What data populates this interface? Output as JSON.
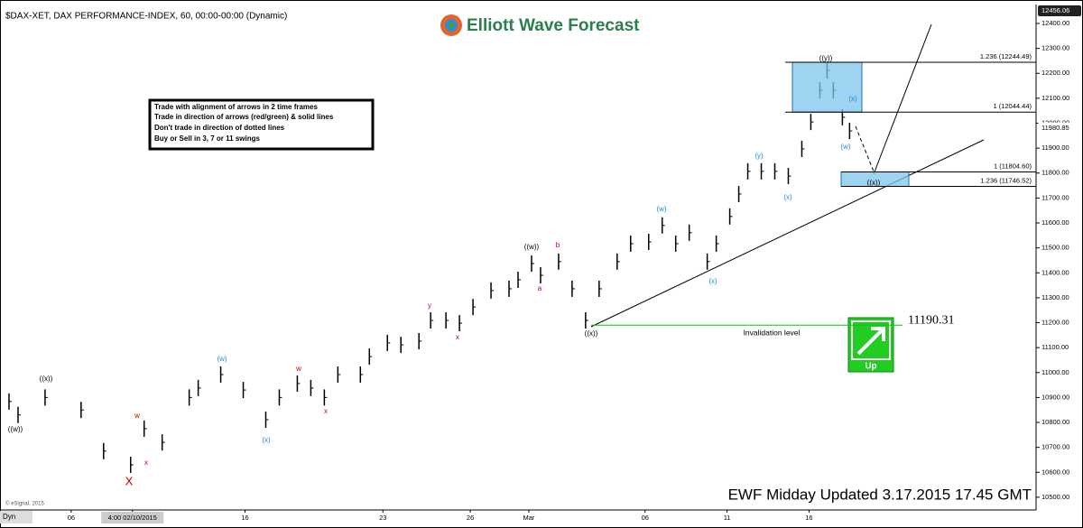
{
  "chart_data": {
    "type": "price-bars",
    "title": "$DAX-XET, DAX PERFORMANCE-INDEX, 60, 00:00-00:00 (Dynamic)",
    "logo": "Elliott Wave Forecast",
    "notes": [
      "Trade with alignment of arrows in 2 time frames",
      "Trade in direction of arrows (red/green) & solid lines",
      "Don't trade in direction of dotted lines",
      "Buy or Sell in 3, 7 or 11 swings"
    ],
    "footer": "EWF Midday Updated 3.17.2015 17.45 GMT",
    "copyright": "© eSignal, 2015",
    "corner_label": "Dyn",
    "color": "#000000",
    "x": [
      1,
      2,
      5,
      9,
      11.5,
      14.5,
      16,
      18,
      21,
      22,
      24.5,
      27,
      29.5,
      31,
      33,
      34.5,
      36,
      37.5,
      40,
      41,
      43,
      44.5,
      46.5,
      47.8,
      49.5,
      51,
      52.5,
      54.5,
      56.5,
      57.5,
      59,
      60,
      62,
      63.5,
      65,
      66.5,
      68.5,
      70,
      72,
      73.5,
      75,
      76.5,
      78.5,
      79.5,
      81,
      82,
      83,
      84.5,
      86,
      87.5,
      89,
      90,
      91,
      91.8,
      92.5,
      93.5,
      94.3
    ],
    "values": [
      10884,
      10830,
      10900,
      10850,
      10685,
      10630,
      10775,
      10720,
      10900,
      10938,
      10992,
      10930,
      10811,
      10900,
      10956,
      10938,
      10900,
      10992,
      10992,
      11064,
      11119,
      11111,
      11126,
      11209,
      11209,
      11198,
      11263,
      11329,
      11336,
      11372,
      11437,
      11390,
      11445,
      11336,
      11209,
      11336,
      11445,
      11517,
      11524,
      11590,
      11517,
      11561,
      11445,
      11517,
      11626,
      11716,
      11807,
      11807,
      11807,
      11788,
      11897,
      12005,
      12132,
      12212,
      12132,
      12024,
      11969
    ],
    "xlim": [
      0,
      115
    ],
    "xticks": [
      {
        "value": 7.9,
        "label": "06"
      },
      {
        "value": 14.7,
        "label": "4:00 02/10/2015"
      },
      {
        "value": 27.2,
        "label": "16"
      },
      {
        "value": 42.5,
        "label": "23"
      },
      {
        "value": 52.2,
        "label": "26"
      },
      {
        "value": 58.7,
        "label": "Mar"
      },
      {
        "value": 71.6,
        "label": "06"
      },
      {
        "value": 80.7,
        "label": "11"
      },
      {
        "value": 89.8,
        "label": "16"
      }
    ],
    "ylim": [
      10449,
      12476
    ],
    "yticks": [
      {
        "value": 10500,
        "label": "10500.00"
      },
      {
        "value": 10600,
        "label": "10600.00"
      },
      {
        "value": 10700,
        "label": "10700.00"
      },
      {
        "value": 10800,
        "label": "10800.00"
      },
      {
        "value": 10900,
        "label": "10900.00"
      },
      {
        "value": 11000,
        "label": "11000.00"
      },
      {
        "value": 11100,
        "label": "11100.00"
      },
      {
        "value": 11200,
        "label": "11200.00"
      },
      {
        "value": 11300,
        "label": "11300.00"
      },
      {
        "value": 11400,
        "label": "11400.00"
      },
      {
        "value": 11500,
        "label": "11500.00"
      },
      {
        "value": 11600,
        "label": "11600.00"
      },
      {
        "value": 11700,
        "label": "11700.00"
      },
      {
        "value": 11800,
        "label": "11800.00"
      },
      {
        "value": 11900,
        "label": "11900.00"
      },
      {
        "value": 12000,
        "label": "12000.00"
      },
      {
        "value": 12100,
        "label": "12100.00"
      },
      {
        "value": 12200,
        "label": "12200.00"
      },
      {
        "value": 12300,
        "label": "12300.00"
      },
      {
        "value": 12400,
        "label": "12400.00"
      }
    ],
    "top_price": 12456.06,
    "last_price": 11980.85,
    "fib_levels": [
      {
        "value": 12244.49,
        "label": "1.236 (12244.49)"
      },
      {
        "value": 12044.44,
        "label": "1 (12044.44)"
      },
      {
        "value": 11804.6,
        "label": "1 (11804.60)"
      },
      {
        "value": 11746.52,
        "label": "1.236 (11746.52)"
      }
    ],
    "invalidation": {
      "value": 11190.31,
      "label": "11190.31",
      "text": "Invalidation level",
      "color": "#00cc00"
    },
    "signal": "Up",
    "wave_labels": [
      {
        "text": "((w))",
        "color": "#000000"
      },
      {
        "text": "((x))",
        "color": "#000000"
      },
      {
        "text": "w",
        "color": "#cc0000"
      },
      {
        "text": "x",
        "color": "#cc0000"
      },
      {
        "text": "X",
        "color": "#cc0000"
      },
      {
        "text": "(w)",
        "color": "#1e8fd0"
      },
      {
        "text": "(x)",
        "color": "#1e8fd0"
      },
      {
        "text": "w",
        "color": "#cc0000"
      },
      {
        "text": "x",
        "color": "#cc0000"
      },
      {
        "text": "y",
        "color": "#cc0000"
      },
      {
        "text": "x",
        "color": "#cc0000"
      },
      {
        "text": "((w))",
        "color": "#000000"
      },
      {
        "text": "b",
        "color": "#cc0000"
      },
      {
        "text": "a",
        "color": "#cc0000"
      },
      {
        "text": "((x))",
        "color": "#000000"
      },
      {
        "text": "(w)",
        "color": "#1e8fd0"
      },
      {
        "text": "(x)",
        "color": "#1e8fd0"
      },
      {
        "text": "(y)",
        "color": "#1e8fd0"
      },
      {
        "text": "(x)",
        "color": "#1e8fd0"
      },
      {
        "text": "((y))",
        "color": "#000000"
      },
      {
        "text": "(x)",
        "color": "#1e8fd0"
      },
      {
        "text": "(w)",
        "color": "#1e8fd0"
      },
      {
        "text": "((x))",
        "color": "#000000"
      }
    ]
  }
}
